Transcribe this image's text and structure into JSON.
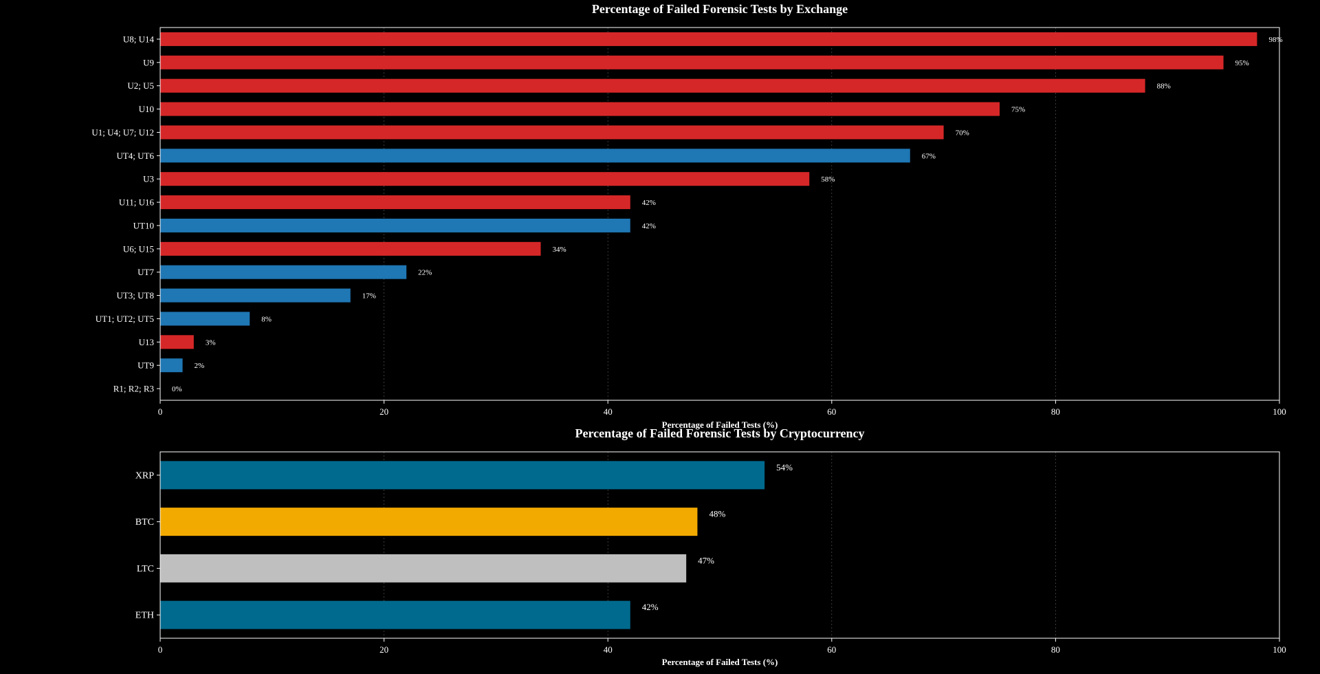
{
  "chart_data": [
    {
      "type": "bar",
      "orientation": "horizontal",
      "title": "Percentage of Failed Forensic Tests by Exchange",
      "xlabel": "Percentage of Failed Tests (%)",
      "ylabel": "",
      "xlim": [
        0,
        100
      ],
      "xticks": [
        0,
        20,
        40,
        60,
        80,
        100
      ],
      "grid": "vertical dotted",
      "categories": [
        "U8; U14",
        "U9",
        "U2; U5",
        "U10",
        "U1; U4; U7; U12",
        "UT4; UT6",
        "U3",
        "U11; U16",
        "UT10",
        "U6; U15",
        "UT7",
        "UT3; UT8",
        "UT1; UT2; UT5",
        "U13",
        "UT9",
        "R1; R2; R3"
      ],
      "values": [
        98,
        95,
        88,
        75,
        70,
        67,
        58,
        42,
        42,
        34,
        22,
        17,
        8,
        3,
        2,
        0
      ],
      "labels": [
        "98%",
        "95%",
        "88%",
        "75%",
        "70%",
        "67%",
        "58%",
        "42%",
        "42%",
        "34%",
        "22%",
        "17%",
        "8%",
        "3%",
        "2%",
        "0%"
      ],
      "colors": [
        "#d62728",
        "#d62728",
        "#d62728",
        "#d62728",
        "#d62728",
        "#1f77b4",
        "#d62728",
        "#d62728",
        "#1f77b4",
        "#d62728",
        "#1f77b4",
        "#1f77b4",
        "#1f77b4",
        "#d62728",
        "#1f77b4",
        "#d62728"
      ]
    },
    {
      "type": "bar",
      "orientation": "horizontal",
      "title": "Percentage of Failed Forensic Tests by Cryptocurrency",
      "xlabel": "Percentage of Failed Tests (%)",
      "ylabel": "",
      "xlim": [
        0,
        100
      ],
      "xticks": [
        0,
        20,
        40,
        60,
        80,
        100
      ],
      "grid": "vertical dotted",
      "categories": [
        "XRP",
        "BTC",
        "LTC",
        "ETH"
      ],
      "values": [
        54,
        48,
        47,
        42
      ],
      "labels": [
        "54%",
        "48%",
        "47%",
        "42%"
      ],
      "colors": [
        "#006a8e",
        "#f2a900",
        "#bfbfbf",
        "#006a8e"
      ]
    }
  ]
}
